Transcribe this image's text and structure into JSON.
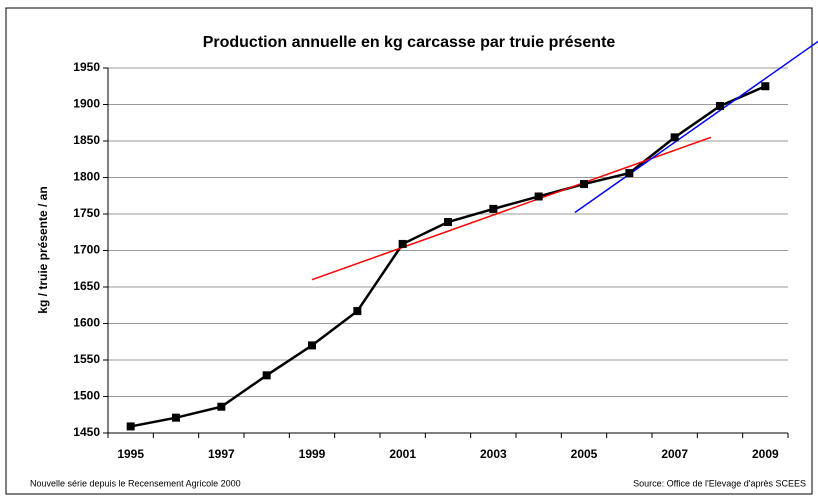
{
  "chart_data": {
    "type": "line",
    "title": "Production annuelle en kg carcasse par truie présente",
    "y_label": "kg /  truie présente / an",
    "categories": [
      "1995",
      null,
      "1997",
      null,
      "1999",
      null,
      "2001",
      null,
      "2003",
      null,
      "2005",
      null,
      "2007",
      null,
      "2009"
    ],
    "series": [
      {
        "name": "Production",
        "color": "#000000",
        "values": [
          1459,
          1471,
          1486,
          1529,
          1570,
          1617,
          1709,
          1739,
          1757,
          1774,
          1791,
          1806,
          1855,
          1898,
          1925
        ]
      }
    ],
    "trend_lines": [
      {
        "color": "#ff0000",
        "x": [
          1999,
          2007.8
        ],
        "y": [
          1660,
          1855
        ]
      },
      {
        "color": "#0000ff",
        "x": [
          2004.8,
          2010.2
        ],
        "y": [
          1752,
          1988
        ]
      }
    ],
    "ylim": [
      1450,
      1950
    ],
    "yticks": [
      1450,
      1500,
      1550,
      1600,
      1650,
      1700,
      1750,
      1800,
      1850,
      1900,
      1950
    ],
    "grid": true,
    "notes": {
      "left": "Nouvelle série depuis le Recensement Agricole 2000",
      "right": "Source: Office de l'Elevage d'après SCEES"
    }
  }
}
